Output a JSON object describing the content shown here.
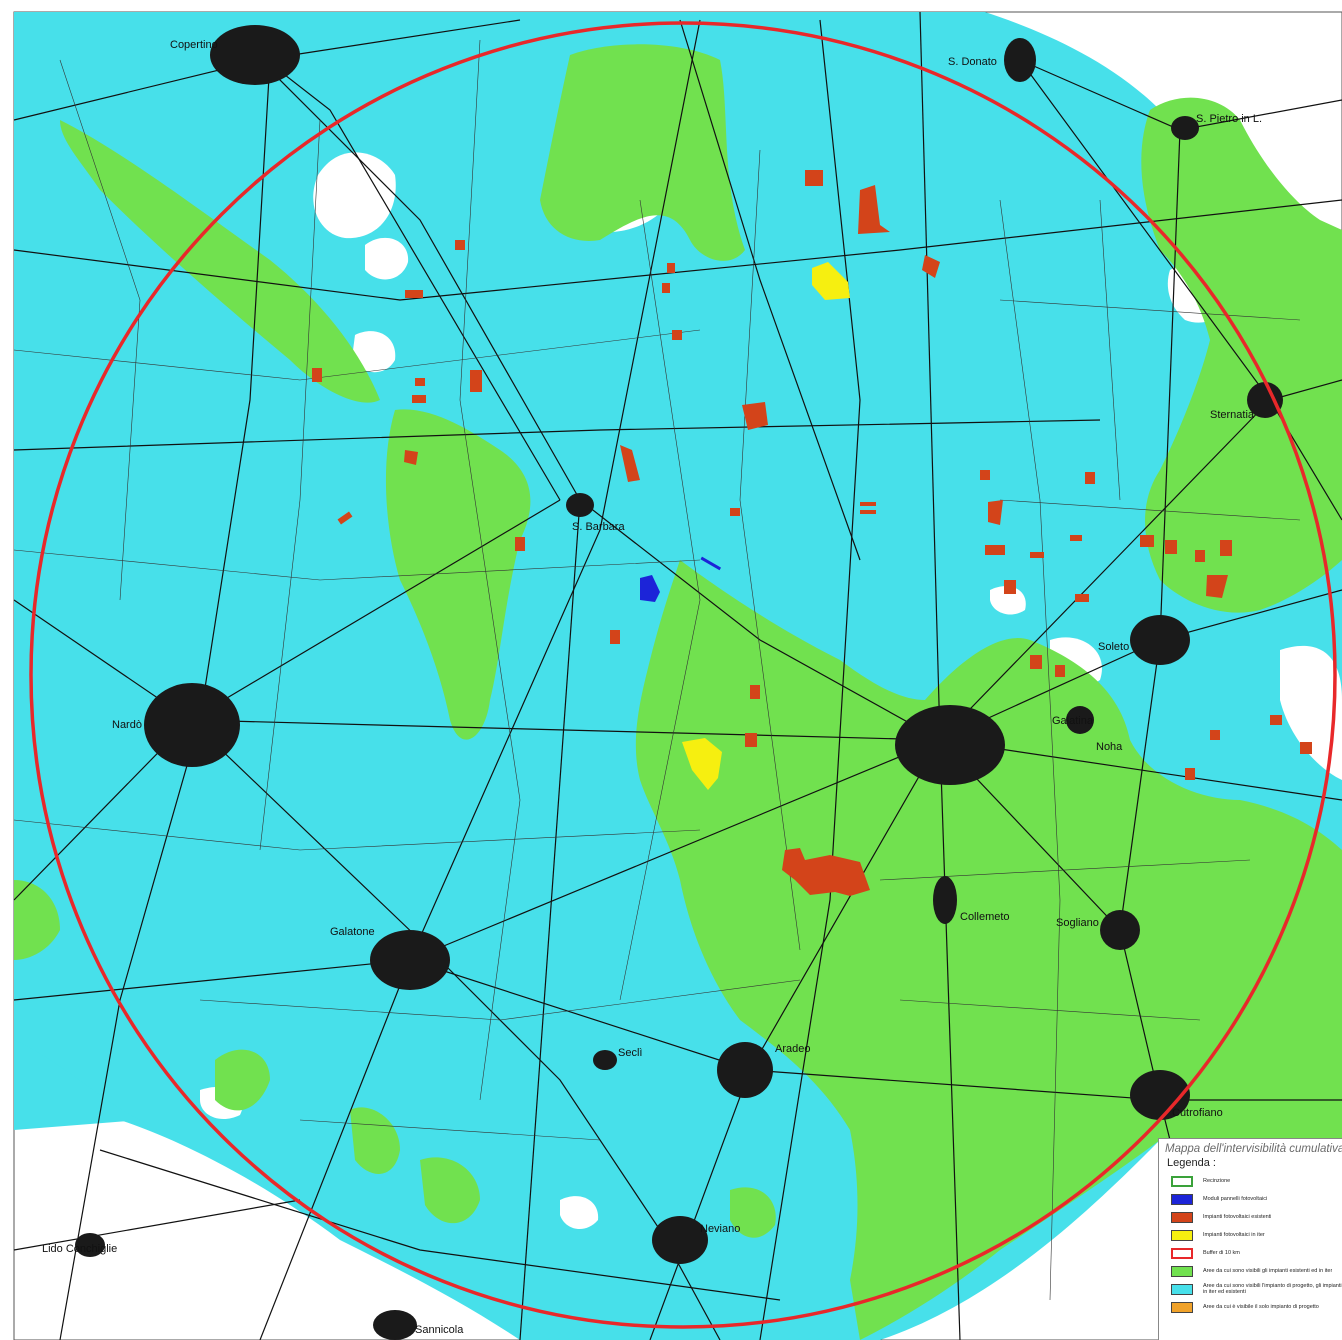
{
  "towns": [
    {
      "name": "Copertino"
    },
    {
      "name": "S. Donato"
    },
    {
      "name": "Sternatia"
    },
    {
      "name": "Nardò"
    },
    {
      "name": "Galatone"
    },
    {
      "name": "Aradeo"
    },
    {
      "name": "Seclì"
    },
    {
      "name": "Neviano"
    },
    {
      "name": "Sogliano"
    },
    {
      "name": "Cutrofiano"
    },
    {
      "name": "Galatina"
    },
    {
      "name": "S. Pietro in L."
    },
    {
      "name": "Soleto"
    },
    {
      "name": "Lido Conchiglie"
    },
    {
      "name": "Sannicola"
    },
    {
      "name": "S. Barbara"
    },
    {
      "name": "Collemeto"
    },
    {
      "name": "Noha"
    }
  ],
  "colors": {
    "cumulative": "#47e0ea",
    "existing_visible": "#71e14f",
    "existing_plants": "#d3441a",
    "pending_plants": "#f6ef10",
    "modules": "#1c24d8",
    "buffer": "#e8282a",
    "project_only": "#f0a22a"
  },
  "legend": {
    "title": "Mappa dell'intervisibilità cumulativa",
    "subtitle": "Legenda :",
    "items": [
      {
        "label": "Recinzione",
        "swatch": "fence"
      },
      {
        "label": "Moduli pannelli fotovoltaici",
        "swatch": "modules"
      },
      {
        "label": "Impianti fotovoltaici esistenti",
        "swatch": "existing"
      },
      {
        "label": "Impianti fotovoltaici in iter",
        "swatch": "pending"
      },
      {
        "label": "Buffer di 10 km",
        "swatch": "buffer"
      },
      {
        "label": "Aree da cui sono visibili gli impianti esistenti ed in iter",
        "swatch": "green"
      },
      {
        "label": "Aree da cui sono visibili l'impianto di progetto, gli impianti in iter ed esistenti",
        "swatch": "cyan"
      },
      {
        "label": "Aree da cui è visibile il solo impianto di progetto",
        "swatch": "orange"
      }
    ]
  }
}
